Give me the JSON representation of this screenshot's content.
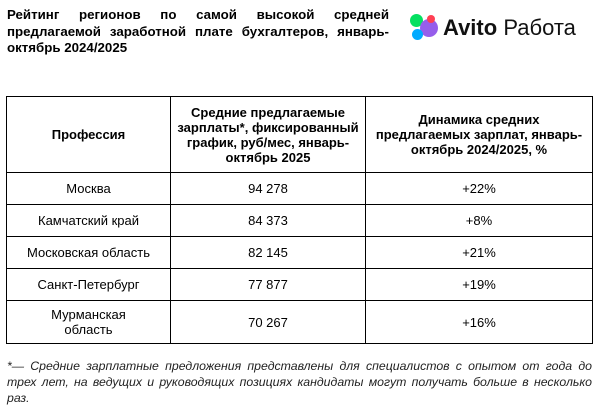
{
  "title": "Рейтинг регионов по самой высокой средней предлагаемой заработной плате бухгалтеров, январь-октябрь 2024/2025",
  "logo": {
    "brand": "Avito",
    "product": "Работа"
  },
  "table": {
    "headers": [
      "Профессия",
      "Средние предлагаемые зарплаты*, фиксированный график, руб/мес, январь-октябрь 2025",
      "Динамика средних предлагаемых зарплат, январь-октябрь 2024/2025, %"
    ],
    "rows": [
      [
        "Москва",
        "94 278",
        "+22%"
      ],
      [
        "Камчатский край",
        "84 373",
        "+8%"
      ],
      [
        "Московская область",
        "82 145",
        "+21%"
      ],
      [
        "Санкт-Петербург",
        "77 877",
        "+19%"
      ],
      [
        "Мурманская область",
        "70 267",
        "+16%"
      ]
    ]
  },
  "footnote": "*— Средние зарплатные предложения представлены для специалистов с опытом от года до трех лет, на ведущих и руководящих позициях кандидаты могут получать больше в несколько раз."
}
